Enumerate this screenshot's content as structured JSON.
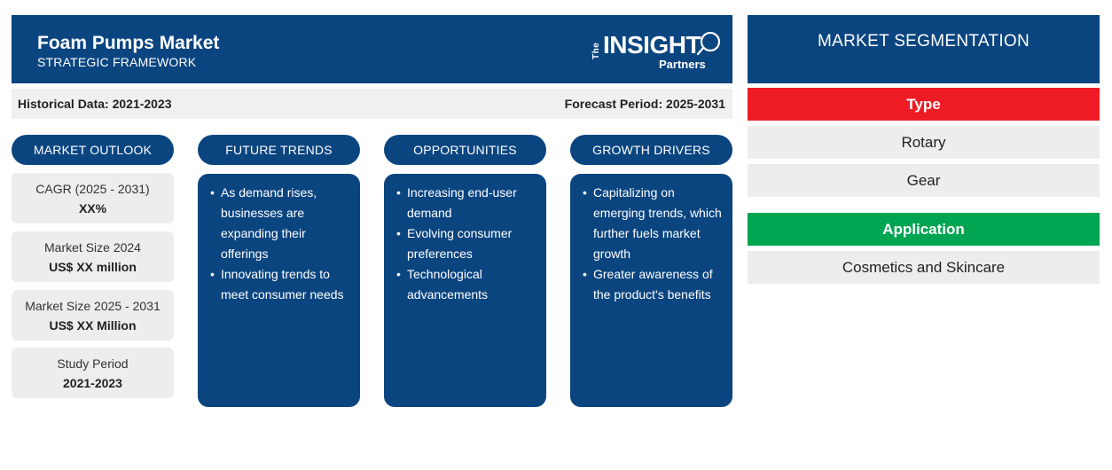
{
  "header": {
    "title": "Foam Pumps Market",
    "subtitle": "STRATEGIC FRAMEWORK",
    "logo": {
      "the": "The",
      "insight": "INSIGHT",
      "partners": "Partners"
    }
  },
  "periods": {
    "historical": "Historical Data: 2021-2023",
    "forecast": "Forecast Period: 2025-2031"
  },
  "columns": {
    "outlook": "MARKET OUTLOOK",
    "trends": "FUTURE TRENDS",
    "opportunities": "OPPORTUNITIES",
    "drivers": "GROWTH DRIVERS"
  },
  "stats": [
    {
      "label": "CAGR (2025 - 2031)",
      "value": "XX%"
    },
    {
      "label": "Market Size 2024",
      "value": "US$ XX million"
    },
    {
      "label": "Market Size 2025 - 2031",
      "value": "US$ XX Million"
    },
    {
      "label": "Study Period",
      "value": "2021-2023"
    }
  ],
  "trends": [
    "As demand rises, businesses are expanding their offerings",
    "Innovating trends to meet consumer needs"
  ],
  "opportunities": [
    "Increasing end-user demand",
    "Evolving consumer preferences",
    "Technological advancements"
  ],
  "drivers": [
    "Capitalizing on emerging trends, which further fuels market growth",
    "Greater awareness of the product's benefits"
  ],
  "segmentation": {
    "title": "MARKET SEGMENTATION",
    "type_label": "Type",
    "type_color": "#ee1c25",
    "types": [
      "Rotary",
      "Gear"
    ],
    "application_label": "Application",
    "application_color": "#00a551",
    "applications": [
      "Cosmetics and Skincare"
    ]
  },
  "colors": {
    "primary": "#0b4580",
    "panel": "#ededed"
  }
}
